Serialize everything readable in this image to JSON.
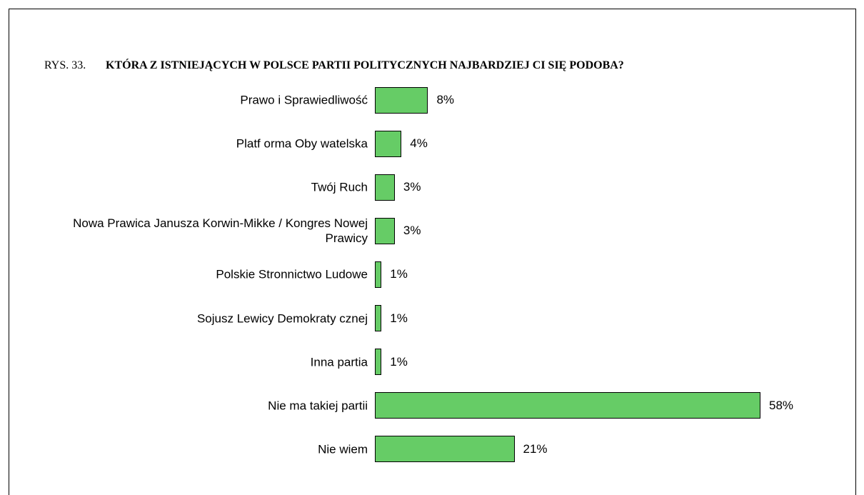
{
  "chart_data": {
    "type": "bar",
    "orientation": "horizontal",
    "figure_label": "RYS. 33.",
    "title": "KTÓRA Z ISTNIEJĄCYCH W POLSCE PARTII POLITYCZNYCH NAJBARDZIEJ CI SIĘ PODOBA?",
    "categories": [
      "Prawo i Sprawiedliwość",
      "Platf orma Oby watelska",
      "Twój Ruch",
      "Nowa Prawica Janusza Korwin-Mikke / Kongres Nowej Prawicy",
      "Polskie Stronnictwo Ludowe",
      "Sojusz Lewicy  Demokraty cznej",
      "Inna partia",
      "Nie ma takiej partii",
      "Nie wiem"
    ],
    "values": [
      8,
      4,
      3,
      3,
      1,
      1,
      1,
      58,
      21
    ],
    "value_labels": [
      "8%",
      "4%",
      "3%",
      "3%",
      "1%",
      "1%",
      "1%",
      "58%",
      "21%"
    ],
    "color": "#66cc66"
  }
}
